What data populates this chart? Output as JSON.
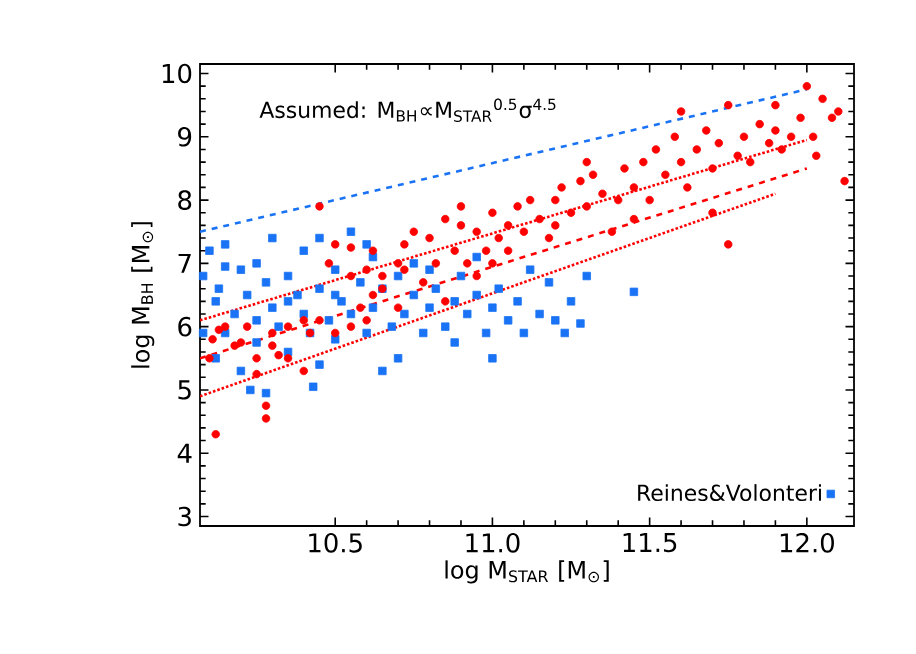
{
  "chart_data": {
    "type": "scatter",
    "xlabel": "log M$_{STAR}$ [M$_{⊙}$]",
    "ylabel": "log M$_{BH}$ [M$_{⊙}$]",
    "annotations": [
      "Assumed: M$_{BH}$∝M$_{STAR}$$^{0.5}$σ$^{4.5}$"
    ],
    "xlim": [
      10.07,
      12.15
    ],
    "ylim": [
      2.85,
      10.15
    ],
    "xticks": [
      10.5,
      {
        "value": 11,
        "label": "11.0"
      },
      11.5,
      {
        "value": 12,
        "label": "12.0"
      }
    ],
    "yticks": [
      3,
      4,
      5,
      6,
      7,
      8,
      9,
      10
    ],
    "legend": "bottom right",
    "series": [
      {
        "name": "Reines&Volonteri",
        "marker": "square",
        "color": "#1a73f5",
        "x": [
          10.08,
          10.08,
          10.1,
          10.12,
          10.13,
          10.15,
          10.15,
          10.18,
          10.2,
          10.2,
          10.22,
          10.23,
          10.25,
          10.25,
          10.28,
          10.28,
          10.3,
          10.3,
          10.32,
          10.35,
          10.35,
          10.38,
          10.4,
          10.4,
          10.42,
          10.43,
          10.45,
          10.45,
          10.48,
          10.5,
          10.5,
          10.52,
          10.55,
          10.55,
          10.58,
          10.6,
          10.62,
          10.62,
          10.65,
          10.65,
          10.68,
          10.7,
          10.7,
          10.72,
          10.75,
          10.78,
          10.8,
          10.8,
          10.82,
          10.85,
          10.88,
          10.9,
          10.92,
          10.95,
          10.98,
          11.0,
          11.02,
          11.05,
          11.08,
          11.1,
          11.12,
          11.15,
          11.18,
          11.2,
          11.23,
          11.25,
          11.28,
          11.45,
          11.3,
          10.6,
          10.35,
          10.15,
          10.25,
          10.5,
          10.75,
          10.95,
          10.12,
          11.0,
          10.88,
          10.45
        ],
        "values": [
          6.8,
          5.9,
          7.2,
          6.4,
          6.6,
          7.3,
          5.9,
          6.2,
          6.9,
          5.3,
          6.5,
          5.0,
          7.0,
          6.1,
          6.7,
          4.95,
          6.3,
          7.4,
          6.0,
          6.8,
          5.6,
          6.5,
          7.2,
          6.2,
          5.9,
          5.05,
          6.6,
          7.4,
          6.1,
          6.9,
          5.8,
          6.4,
          7.5,
          6.2,
          6.7,
          5.9,
          6.3,
          7.1,
          5.3,
          6.6,
          6.0,
          5.5,
          6.8,
          6.2,
          6.5,
          5.9,
          6.9,
          6.3,
          6.6,
          6.0,
          6.4,
          6.8,
          6.2,
          6.5,
          5.9,
          6.3,
          6.6,
          6.1,
          6.4,
          5.9,
          6.9,
          6.2,
          6.7,
          6.1,
          5.9,
          6.4,
          6.05,
          6.55,
          6.8,
          7.3,
          6.4,
          6.95,
          5.75,
          6.5,
          7.0,
          7.1,
          5.5,
          5.5,
          5.75,
          5.4
        ]
      },
      {
        "marker": "circle",
        "color": "#ff0000",
        "x": [
          10.12,
          10.1,
          10.11,
          10.13,
          10.15,
          10.18,
          10.2,
          10.22,
          10.25,
          10.25,
          10.28,
          10.28,
          10.3,
          10.32,
          10.35,
          10.35,
          10.4,
          10.42,
          10.45,
          10.5,
          10.55,
          10.58,
          10.62,
          10.65,
          10.45,
          10.5,
          10.48,
          10.55,
          10.55,
          10.6,
          10.62,
          10.65,
          10.7,
          10.72,
          10.75,
          10.78,
          10.8,
          10.82,
          10.85,
          10.88,
          10.9,
          10.92,
          10.95,
          10.98,
          11.0,
          11.02,
          11.05,
          11.05,
          11.08,
          11.1,
          11.12,
          11.15,
          11.18,
          11.2,
          11.22,
          11.25,
          11.28,
          11.3,
          11.32,
          11.35,
          11.38,
          11.4,
          11.42,
          11.45,
          11.48,
          11.5,
          11.52,
          11.55,
          11.58,
          11.6,
          11.62,
          11.65,
          11.68,
          11.7,
          11.72,
          11.75,
          11.78,
          11.8,
          11.82,
          11.85,
          11.88,
          11.9,
          11.92,
          11.95,
          11.98,
          12.0,
          12.02,
          12.05,
          12.08,
          12.1,
          12.12,
          12.03,
          11.7,
          11.45,
          11.2,
          10.95,
          10.85,
          10.7,
          10.6,
          10.9,
          10.3,
          10.4,
          10.72,
          11.0,
          11.6,
          11.75,
          11.3,
          11.9
        ],
        "values": [
          4.3,
          5.5,
          5.8,
          5.95,
          6.0,
          5.7,
          5.75,
          6.0,
          5.5,
          5.25,
          4.75,
          4.55,
          5.7,
          5.55,
          5.5,
          6.0,
          5.3,
          5.9,
          6.1,
          5.9,
          6.0,
          6.3,
          6.5,
          6.6,
          7.9,
          7.3,
          7.0,
          7.25,
          6.8,
          6.9,
          7.2,
          6.8,
          7.0,
          7.3,
          7.5,
          6.7,
          7.4,
          7.0,
          7.7,
          7.2,
          7.6,
          7.0,
          7.5,
          7.2,
          7.8,
          7.4,
          7.6,
          7.2,
          7.9,
          7.5,
          8.0,
          7.7,
          7.4,
          8.0,
          8.2,
          7.8,
          8.3,
          7.9,
          8.4,
          8.1,
          7.5,
          8.0,
          8.5,
          8.2,
          8.6,
          8.0,
          8.8,
          8.4,
          9.0,
          8.6,
          8.2,
          8.8,
          9.1,
          8.5,
          8.9,
          7.3,
          8.7,
          9.0,
          8.6,
          9.2,
          8.9,
          9.1,
          8.8,
          9.0,
          9.3,
          9.8,
          9.0,
          9.6,
          9.3,
          9.4,
          8.3,
          8.7,
          7.8,
          7.7,
          7.6,
          6.8,
          6.4,
          6.3,
          6.1,
          7.9,
          5.9,
          6.1,
          6.9,
          7.0,
          9.4,
          9.5,
          8.6,
          9.5
        ]
      },
      {
        "type": "line",
        "line_style": "dashed",
        "color": "#1a73f5",
        "x": [
          10.07,
          12.0
        ],
        "values": [
          7.5,
          9.75
        ]
      },
      {
        "type": "line",
        "line_style": "dashed",
        "color": "#ff0000",
        "x": [
          10.07,
          12.0
        ],
        "values": [
          5.5,
          8.5
        ]
      },
      {
        "type": "line",
        "line_style": "dotted",
        "color": "#ff0000",
        "x": [
          10.07,
          12.0
        ],
        "values": [
          6.1,
          8.95
        ]
      },
      {
        "type": "line",
        "line_style": "dotted",
        "color": "#ff0000",
        "x": [
          10.07,
          11.9
        ],
        "values": [
          4.9,
          8.1
        ]
      }
    ]
  }
}
